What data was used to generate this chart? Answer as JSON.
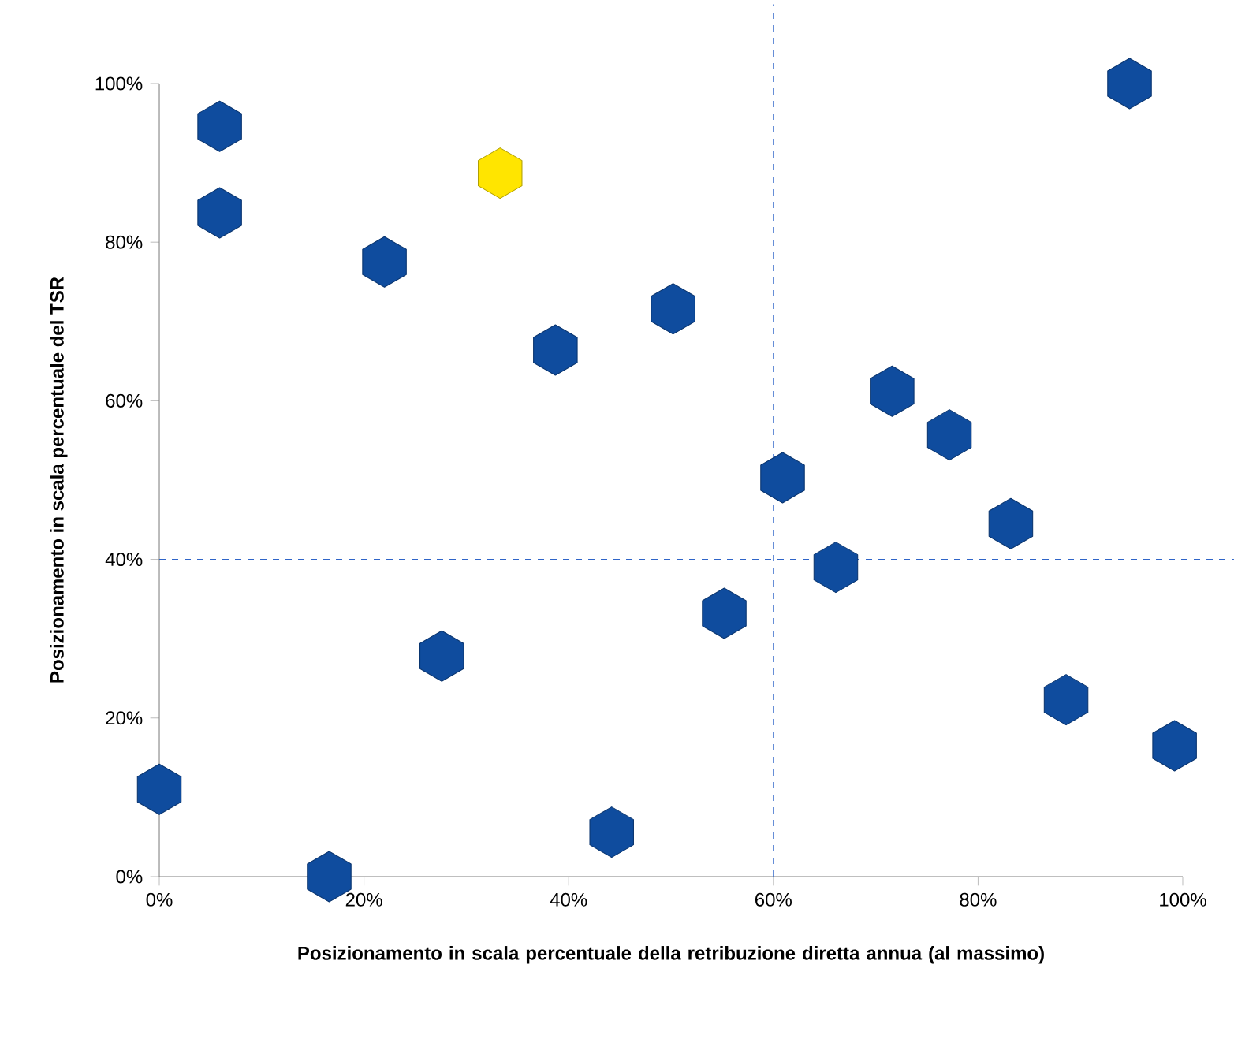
{
  "chart_data": {
    "type": "scatter",
    "xlabel": "Posizionamento  in scala  percentuale della retribuzione diretta annua (al massimo)",
    "ylabel": "Posizionamento in scala percentuale del TSR",
    "x": [
      0,
      5.9,
      5.9,
      16.6,
      22,
      27.6,
      33.3,
      38.7,
      44.2,
      50.2,
      55.2,
      60.9,
      66.1,
      71.6,
      77.2,
      83.2,
      88.6,
      94.8,
      99.2
    ],
    "values": [
      11,
      94.6,
      83.7,
      0,
      77.5,
      27.8,
      88.7,
      66.4,
      5.6,
      71.6,
      33.2,
      50.3,
      39,
      61.2,
      55.7,
      44.5,
      22.3,
      100,
      16.5
    ],
    "colors": [
      "#0f4c9e",
      "#0f4c9e",
      "#0f4c9e",
      "#0f4c9e",
      "#0f4c9e",
      "#0f4c9e",
      "#ffe500",
      "#0f4c9e",
      "#0f4c9e",
      "#0f4c9e",
      "#0f4c9e",
      "#0f4c9e",
      "#0f4c9e",
      "#0f4c9e",
      "#0f4c9e",
      "#0f4c9e",
      "#0f4c9e",
      "#0f4c9e",
      "#0f4c9e"
    ],
    "xlim": [
      0,
      100
    ],
    "ylim": [
      0,
      100
    ],
    "xticks": [
      {
        "value": 0,
        "label": "0%"
      },
      {
        "value": 20,
        "label": "20%"
      },
      {
        "value": 40,
        "label": "40%"
      },
      {
        "value": 60,
        "label": "60%"
      },
      {
        "value": 80,
        "label": "80%"
      },
      {
        "value": 100,
        "label": "100%"
      }
    ],
    "yticks": [
      {
        "value": 0,
        "label": "0%"
      },
      {
        "value": 20,
        "label": "20%"
      },
      {
        "value": 40,
        "label": "40%"
      },
      {
        "value": 60,
        "label": "60%"
      },
      {
        "value": 80,
        "label": "80%"
      },
      {
        "value": 100,
        "label": "100%"
      }
    ],
    "ref_lines": [
      {
        "axis": "x",
        "value": 60,
        "color": "#2e64c8",
        "line_style": "dashed"
      },
      {
        "axis": "y",
        "value": 40,
        "color": "#2e64c8",
        "line_style": "dashed"
      }
    ]
  }
}
